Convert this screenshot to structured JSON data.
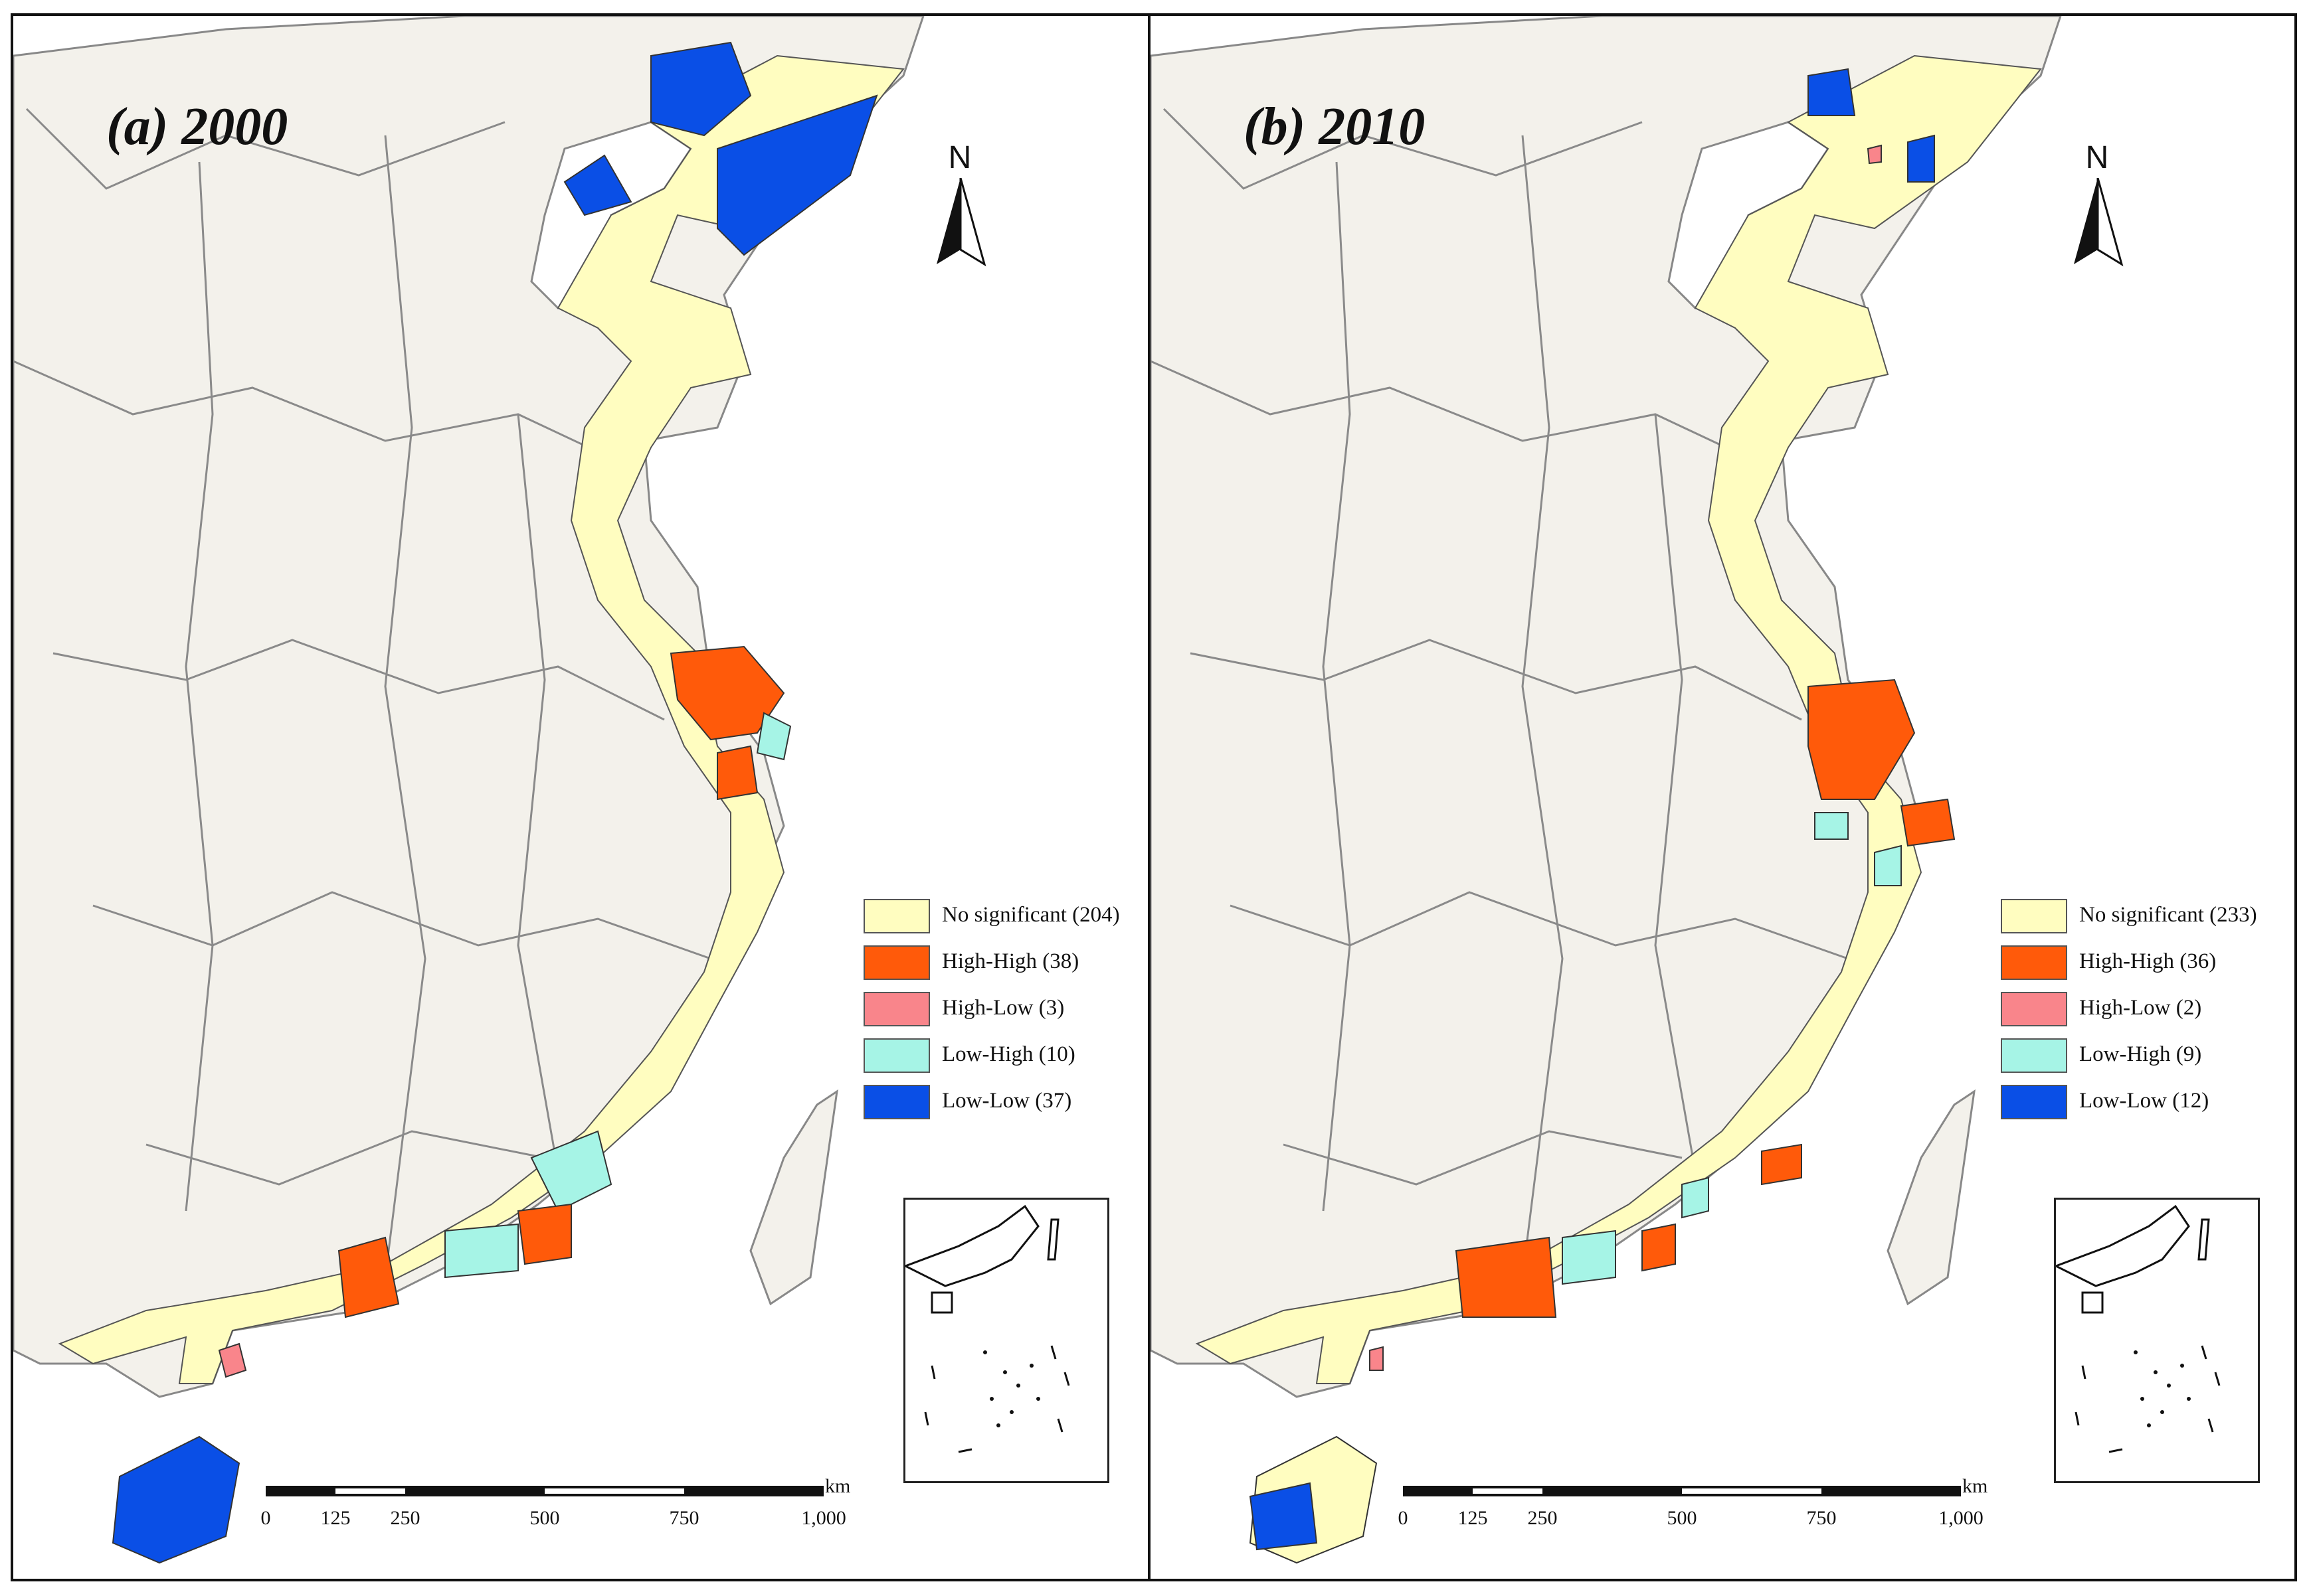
{
  "figure": {
    "panels": [
      {
        "id": "a",
        "title": "(a) 2000",
        "north_label": "N",
        "scale_unit": "km",
        "scale_ticks": [
          "0",
          "125",
          "250",
          "500",
          "750",
          "1,000"
        ],
        "legend": [
          {
            "label": "No significant (204)",
            "color": "#FFFDC0"
          },
          {
            "label": "High-High (38)",
            "color": "#FF5A0A"
          },
          {
            "label": "High-Low (3)",
            "color": "#F9858B"
          },
          {
            "label": "Low-High (10)",
            "color": "#A6F4E6"
          },
          {
            "label": "Low-Low (37)",
            "color": "#0A4FE6"
          }
        ]
      },
      {
        "id": "b",
        "title": "(b) 2010",
        "north_label": "N",
        "scale_unit": "km",
        "scale_ticks": [
          "0",
          "125",
          "250",
          "500",
          "750",
          "1,000"
        ],
        "legend": [
          {
            "label": "No significant (233)",
            "color": "#FFFDC0"
          },
          {
            "label": "High-High (36)",
            "color": "#FF5A0A"
          },
          {
            "label": "High-Low (2)",
            "color": "#F9858B"
          },
          {
            "label": "Low-High (9)",
            "color": "#A6F4E6"
          },
          {
            "label": "Low-Low (12)",
            "color": "#0A4FE6"
          }
        ]
      }
    ],
    "colors": {
      "land_background": "#F3F1EB",
      "sea": "#FFFFFF",
      "boundary": "#8A8A8A"
    }
  }
}
